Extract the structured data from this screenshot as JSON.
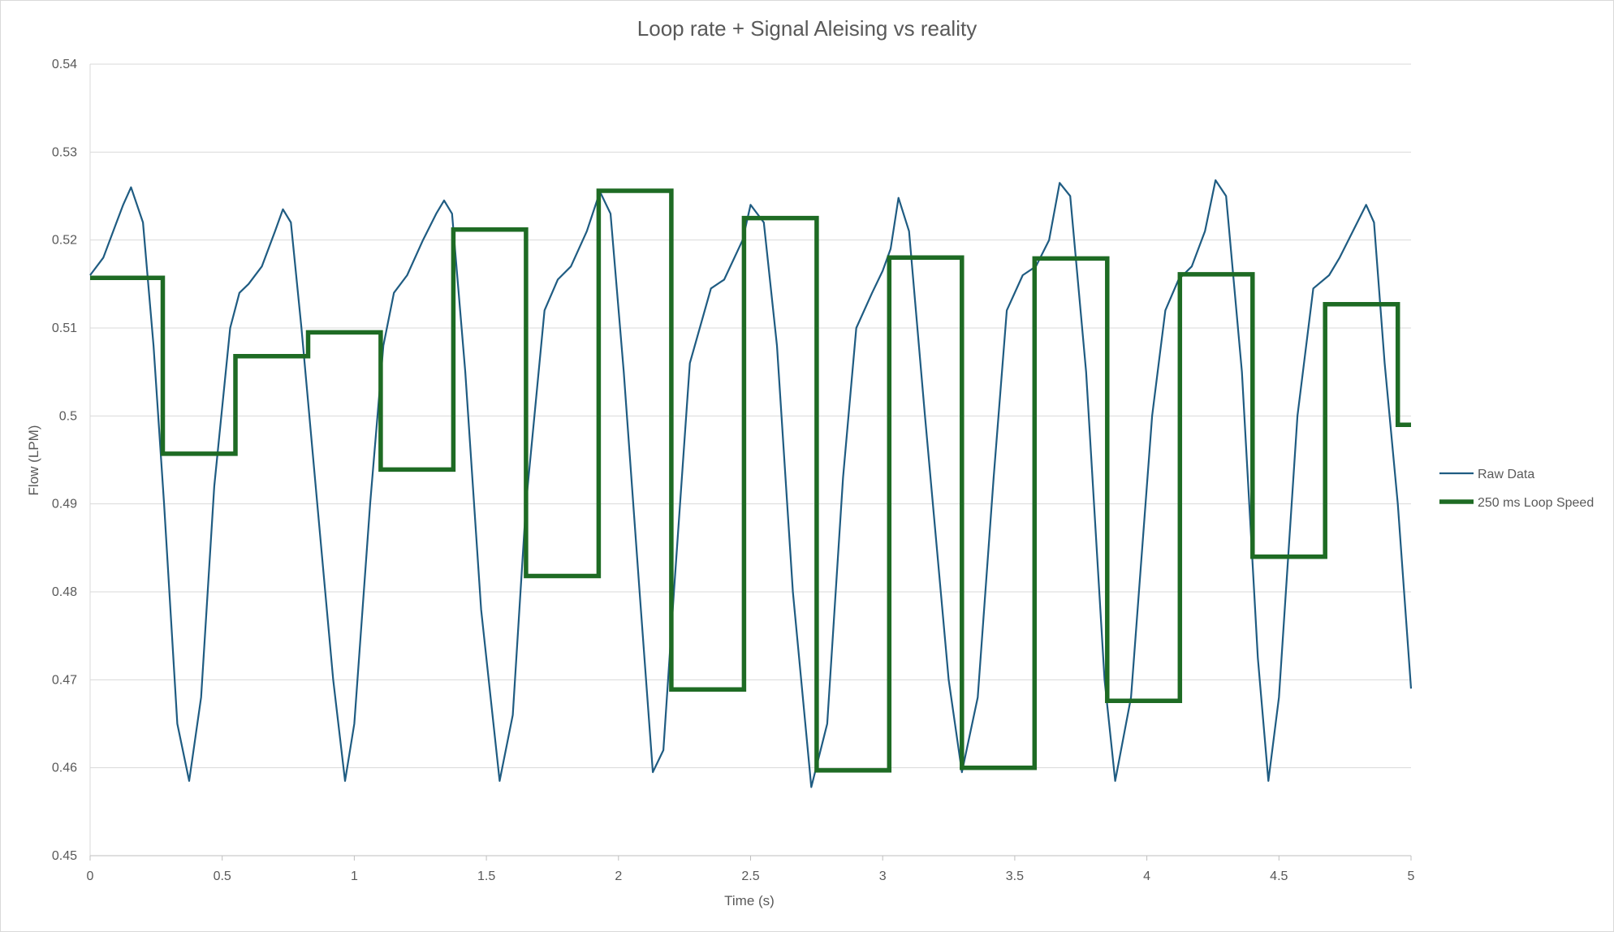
{
  "chart_data": {
    "type": "line",
    "title": "Loop rate + Signal Aleising vs reality",
    "xlabel": "Time (s)",
    "ylabel": "Flow (LPM)",
    "xlim": [
      0,
      5
    ],
    "ylim": [
      0.45,
      0.54
    ],
    "x_ticks": [
      0,
      0.5,
      1,
      1.5,
      2,
      2.5,
      3,
      3.5,
      4,
      4.5,
      5
    ],
    "x_tick_labels": [
      "0",
      "0.5",
      "1",
      "1.5",
      "2",
      "2.5",
      "3",
      "3.5",
      "4",
      "4.5",
      "5"
    ],
    "y_ticks": [
      0.45,
      0.46,
      0.47,
      0.48,
      0.49,
      0.5,
      0.51,
      0.52,
      0.53,
      0.54
    ],
    "y_tick_labels": [
      "0.45",
      "0.46",
      "0.47",
      "0.48",
      "0.49",
      "0.5",
      "0.51",
      "0.52",
      "0.53",
      "0.54"
    ],
    "grid": "horizontal",
    "legend_position": "right",
    "series": [
      {
        "name": "Raw Data",
        "style": "line",
        "color": "#1f5c82",
        "x": [
          0,
          0.05,
          0.1,
          0.125,
          0.155,
          0.2,
          0.24,
          0.28,
          0.33,
          0.375,
          0.42,
          0.47,
          0.53,
          0.565,
          0.6,
          0.65,
          0.7,
          0.73,
          0.76,
          0.8,
          0.86,
          0.92,
          0.965,
          1.0,
          1.06,
          1.11,
          1.15,
          1.2,
          1.26,
          1.31,
          1.34,
          1.37,
          1.42,
          1.48,
          1.55,
          1.6,
          1.65,
          1.72,
          1.77,
          1.82,
          1.88,
          1.93,
          1.97,
          2.02,
          2.08,
          2.13,
          2.17,
          2.21,
          2.27,
          2.35,
          2.4,
          2.47,
          2.5,
          2.55,
          2.6,
          2.66,
          2.73,
          2.79,
          2.85,
          2.9,
          2.96,
          3.0,
          3.03,
          3.06,
          3.1,
          3.16,
          3.25,
          3.3,
          3.36,
          3.42,
          3.47,
          3.53,
          3.58,
          3.63,
          3.67,
          3.71,
          3.77,
          3.84,
          3.88,
          3.94,
          4.02,
          4.07,
          4.12,
          4.17,
          4.22,
          4.26,
          4.3,
          4.36,
          4.42,
          4.46,
          4.5,
          4.57,
          4.63,
          4.69,
          4.73,
          4.78,
          4.83,
          4.86,
          4.9,
          4.95,
          5.0
        ],
        "y": [
          0.516,
          0.518,
          0.522,
          0.524,
          0.526,
          0.522,
          0.508,
          0.49,
          0.465,
          0.4585,
          0.468,
          0.492,
          0.51,
          0.514,
          0.515,
          0.517,
          0.521,
          0.5235,
          0.522,
          0.51,
          0.49,
          0.47,
          0.4585,
          0.465,
          0.49,
          0.508,
          0.514,
          0.516,
          0.52,
          0.523,
          0.5245,
          0.523,
          0.505,
          0.478,
          0.4585,
          0.466,
          0.49,
          0.512,
          0.5155,
          0.517,
          0.521,
          0.5255,
          0.523,
          0.505,
          0.48,
          0.4595,
          0.462,
          0.48,
          0.506,
          0.5145,
          0.5155,
          0.52,
          0.524,
          0.522,
          0.508,
          0.48,
          0.4578,
          0.465,
          0.493,
          0.51,
          0.514,
          0.5165,
          0.519,
          0.5248,
          0.521,
          0.5,
          0.47,
          0.4595,
          0.468,
          0.493,
          0.512,
          0.516,
          0.517,
          0.52,
          0.5265,
          0.525,
          0.505,
          0.47,
          0.4585,
          0.468,
          0.5,
          0.512,
          0.5155,
          0.517,
          0.521,
          0.5268,
          0.525,
          0.505,
          0.4725,
          0.4585,
          0.468,
          0.5,
          0.5145,
          0.516,
          0.518,
          0.521,
          0.524,
          0.522,
          0.506,
          0.49,
          0.469
        ]
      },
      {
        "name": "250 ms Loop Speed",
        "style": "step",
        "color": "#1e6b24",
        "x": [
          0,
          0.275,
          0.55,
          0.825,
          1.1,
          1.375,
          1.65,
          1.925,
          2.2,
          2.475,
          2.75,
          3.025,
          3.3,
          3.575,
          3.85,
          4.125,
          4.4,
          4.675,
          4.95,
          5.0
        ],
        "y": [
          0.5157,
          0.4957,
          0.5068,
          0.5095,
          0.4939,
          0.5212,
          0.4818,
          0.5256,
          0.4689,
          0.5225,
          0.4597,
          0.518,
          0.46,
          0.5179,
          0.4676,
          0.5161,
          0.484,
          0.5127,
          0.499,
          0.499
        ]
      }
    ]
  }
}
